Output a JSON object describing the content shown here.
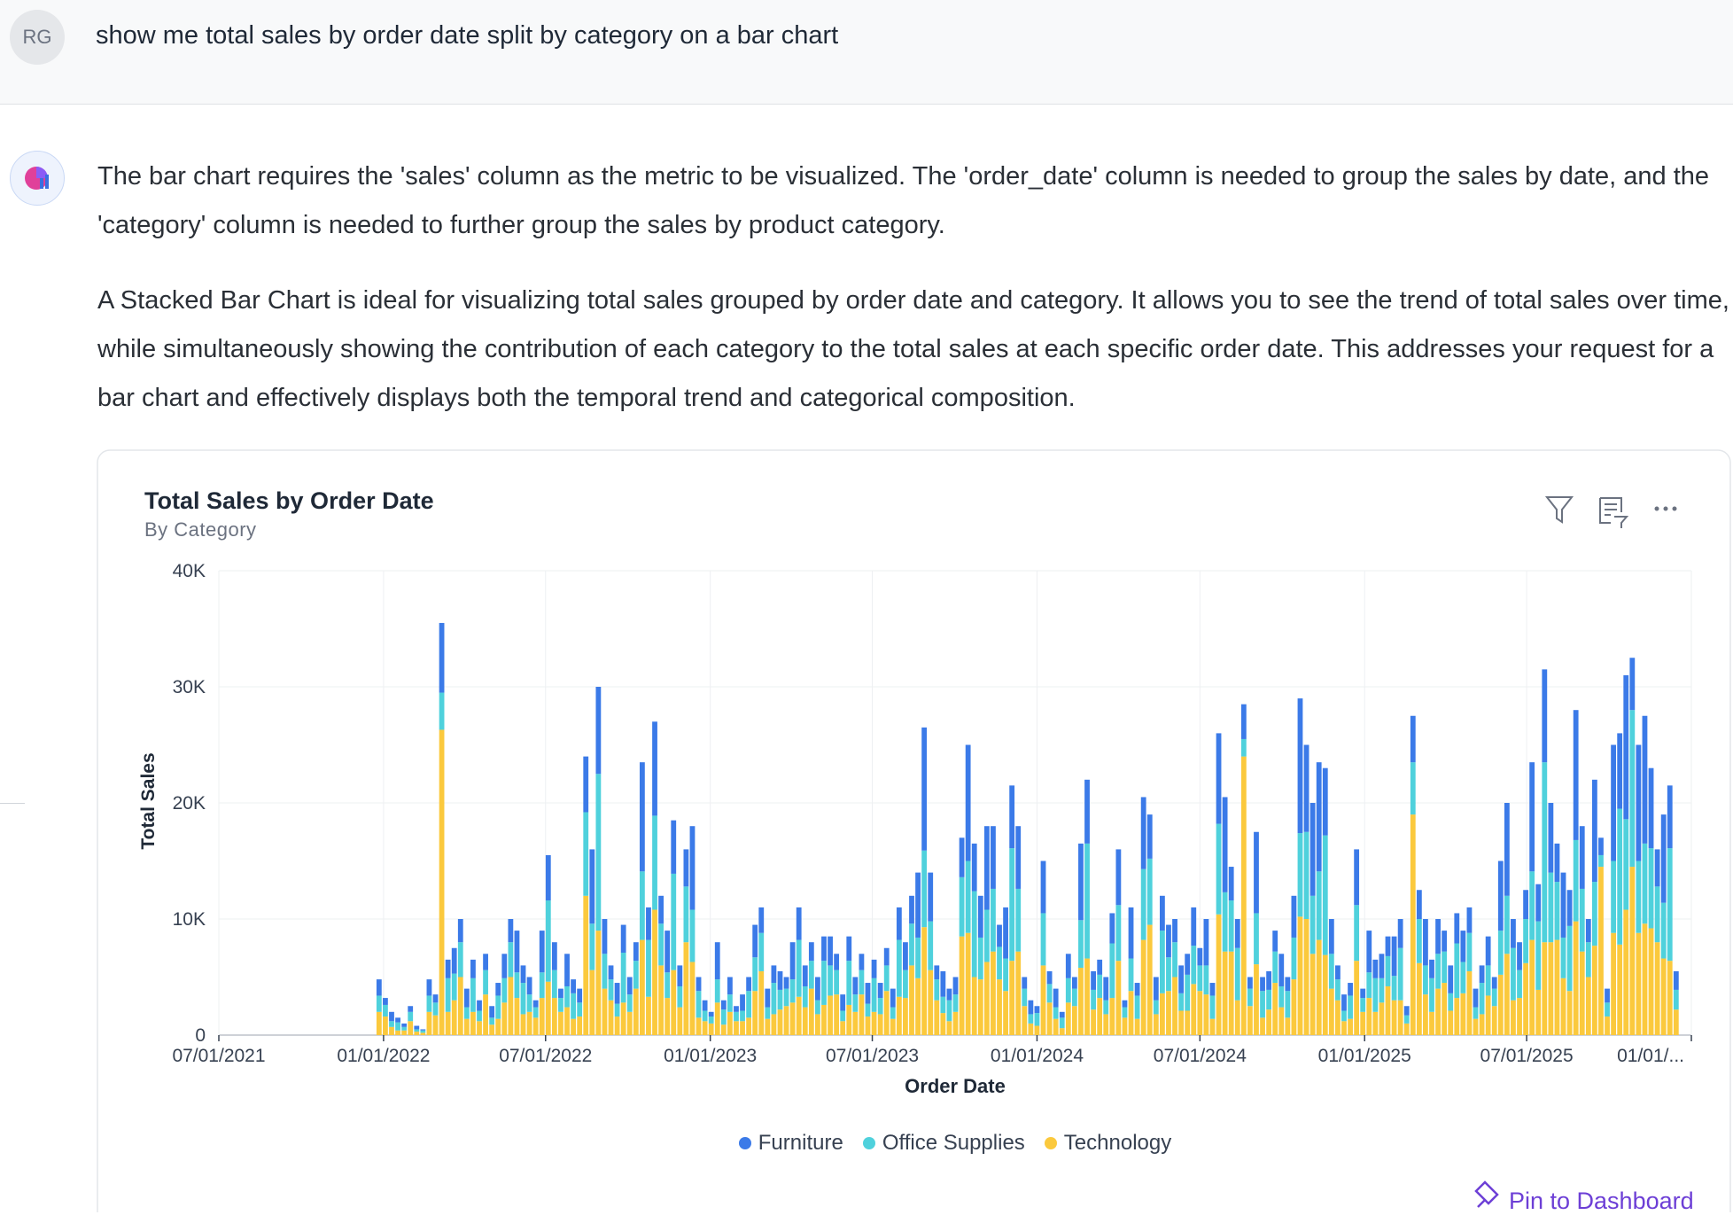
{
  "user_message": {
    "avatar": "RG",
    "text": "show me total sales by order date split by category on a bar chart"
  },
  "assistant_message": {
    "paragraphs": [
      "The bar chart requires the 'sales' column as the metric to be visualized. The 'order_date' column is needed to group the sales by date, and the 'category' column is needed to further group the sales by product category.",
      "A Stacked Bar Chart is ideal for visualizing total sales grouped by order date and category. It allows you to see the trend of total sales over time, while simultaneously showing the contribution of each category to the total sales at each specific order date. This addresses your request for a bar chart and effectively displays both the temporal trend and categorical composition."
    ]
  },
  "chart_data": {
    "type": "stacked_bar",
    "title": "Total Sales by Order Date",
    "subtitle": "By Category",
    "x_label": "Order Date",
    "y_label": "Total Sales",
    "grid": true,
    "legend": "bottom",
    "xlim": [
      "07/01/2021",
      "01/01/2026"
    ],
    "xticks": [
      "07/01/2021",
      "01/01/2022",
      "07/01/2022",
      "01/01/2023",
      "07/01/2023",
      "01/01/2024",
      "07/01/2024",
      "01/01/2025",
      "07/01/2025",
      {
        "value": "01/01/2026",
        "label": "01/01/..."
      }
    ],
    "ylim": [
      0,
      40000
    ],
    "yticks": [
      0,
      {
        "value": 10000,
        "label": "10K"
      },
      {
        "value": 20000,
        "label": "20K"
      },
      {
        "value": 30000,
        "label": "30K"
      },
      {
        "value": 40000,
        "label": "40K"
      }
    ],
    "x": [
      "12/27/2021",
      "01/03/2022",
      "01/10/2022",
      "01/17/2022",
      "01/24/2022",
      "01/31/2022",
      "02/07/2022",
      "02/14/2022",
      "02/21/2022",
      "02/28/2022",
      "03/07/2022",
      "03/14/2022",
      "03/21/2022",
      "03/28/2022",
      "04/04/2022",
      "04/11/2022",
      "04/18/2022",
      "04/25/2022",
      "05/02/2022",
      "05/09/2022",
      "05/16/2022",
      "05/23/2022",
      "05/30/2022",
      "06/06/2022",
      "06/13/2022",
      "06/20/2022",
      "06/27/2022",
      "07/04/2022",
      "07/11/2022",
      "07/18/2022",
      "07/25/2022",
      "08/01/2022",
      "08/08/2022",
      "08/15/2022",
      "08/22/2022",
      "08/29/2022",
      "09/05/2022",
      "09/12/2022",
      "09/19/2022",
      "09/26/2022",
      "10/03/2022",
      "10/10/2022",
      "10/17/2022",
      "10/24/2022",
      "10/31/2022",
      "11/07/2022",
      "11/14/2022",
      "11/21/2022",
      "11/28/2022",
      "12/05/2022",
      "12/12/2022",
      "12/19/2022",
      "12/26/2022",
      "01/02/2023",
      "01/09/2023",
      "01/16/2023",
      "01/23/2023",
      "01/30/2023",
      "02/06/2023",
      "02/13/2023",
      "02/20/2023",
      "02/27/2023",
      "03/06/2023",
      "03/13/2023",
      "03/20/2023",
      "03/27/2023",
      "04/03/2023",
      "04/10/2023",
      "04/17/2023",
      "04/24/2023",
      "05/01/2023",
      "05/08/2023",
      "05/15/2023",
      "05/22/2023",
      "05/29/2023",
      "06/05/2023",
      "06/12/2023",
      "06/19/2023",
      "06/26/2023",
      "07/03/2023",
      "07/10/2023",
      "07/17/2023",
      "07/24/2023",
      "07/31/2023",
      "08/07/2023",
      "08/14/2023",
      "08/21/2023",
      "08/28/2023",
      "09/04/2023",
      "09/11/2023",
      "09/18/2023",
      "09/25/2023",
      "10/02/2023",
      "10/09/2023",
      "10/16/2023",
      "10/23/2023",
      "10/30/2023",
      "11/06/2023",
      "11/13/2023",
      "11/20/2023",
      "11/27/2023",
      "12/04/2023",
      "12/11/2023",
      "12/18/2023",
      "12/25/2023",
      "01/01/2024",
      "01/08/2024",
      "01/15/2024",
      "01/22/2024",
      "01/29/2024",
      "02/05/2024",
      "02/12/2024",
      "02/19/2024",
      "02/26/2024",
      "03/04/2024",
      "03/11/2024",
      "03/18/2024",
      "03/25/2024",
      "04/01/2024",
      "04/08/2024",
      "04/15/2024",
      "04/22/2024",
      "04/29/2024",
      "05/06/2024",
      "05/13/2024",
      "05/20/2024",
      "05/27/2024",
      "06/03/2024",
      "06/10/2024",
      "06/17/2024",
      "06/24/2024",
      "07/01/2024",
      "07/08/2024",
      "07/15/2024",
      "07/22/2024",
      "07/29/2024",
      "08/05/2024",
      "08/12/2024",
      "08/19/2024",
      "08/26/2024",
      "09/02/2024",
      "09/09/2024",
      "09/16/2024",
      "09/23/2024",
      "09/30/2024",
      "10/07/2024",
      "10/14/2024",
      "10/21/2024",
      "10/28/2024",
      "11/04/2024",
      "11/11/2024",
      "11/18/2024",
      "11/25/2024",
      "12/02/2024",
      "12/09/2024",
      "12/16/2024",
      "12/23/2024",
      "12/30/2024",
      "01/06/2025",
      "01/13/2025",
      "01/20/2025",
      "01/27/2025",
      "02/03/2025",
      "02/10/2025",
      "02/17/2025",
      "02/24/2025",
      "03/03/2025",
      "03/10/2025",
      "03/17/2025",
      "03/24/2025",
      "03/31/2025",
      "04/07/2025",
      "04/14/2025",
      "04/21/2025",
      "04/28/2025",
      "05/05/2025",
      "05/12/2025",
      "05/19/2025",
      "05/26/2025",
      "06/02/2025",
      "06/09/2025",
      "06/16/2025",
      "06/23/2025",
      "06/30/2025",
      "07/07/2025",
      "07/14/2025",
      "07/21/2025",
      "07/28/2025",
      "08/04/2025",
      "08/11/2025",
      "08/18/2025",
      "08/25/2025",
      "09/01/2025",
      "09/08/2025",
      "09/15/2025",
      "09/22/2025",
      "09/29/2025",
      "10/06/2025",
      "10/13/2025",
      "10/20/2025",
      "10/27/2025",
      "11/03/2025",
      "11/10/2025",
      "11/17/2025",
      "11/24/2025",
      "12/01/2025",
      "12/08/2025",
      "12/15/2025"
    ],
    "series": [
      {
        "name": "Furniture",
        "color": "#3b7ae8",
        "values": [
          1400,
          600,
          800,
          400,
          300,
          500,
          300,
          100,
          1400,
          700,
          6000,
          1600,
          2200,
          2000,
          1600,
          1600,
          900,
          1400,
          1000,
          1100,
          2100,
          2000,
          3600,
          1500,
          1500,
          600,
          3600,
          3900,
          2400,
          800,
          2800,
          1200,
          1200,
          4800,
          6400,
          7500,
          3000,
          1200,
          1800,
          2400,
          1500,
          1600,
          9400,
          2800,
          8100,
          2400,
          3600,
          4600,
          1800,
          3200,
          7200,
          1200,
          900,
          400,
          3200,
          800,
          1500,
          500,
          1400,
          1200,
          2800,
          2200,
          1600,
          1500,
          1600,
          1000,
          3200,
          2800,
          1800,
          1600,
          2000,
          2100,
          2500,
          1400,
          1400,
          2100,
          1500,
          1400,
          1800,
          1600,
          1300,
          1500,
          1600,
          2800,
          2400,
          2400,
          5600,
          10600,
          4200,
          1200,
          2200,
          1000,
          1500,
          3400,
          10000,
          4100,
          3600,
          7200,
          5400,
          1900,
          4400,
          5400,
          5400,
          1000,
          1200,
          600,
          4500,
          1100,
          1600,
          500,
          2100,
          1000,
          6600,
          5500,
          1600,
          1300,
          2000,
          2600,
          4800,
          600,
          4400,
          1100,
          6200,
          3800,
          2000,
          3000,
          2800,
          2000,
          2400,
          1800,
          3300,
          1500,
          4000,
          1100,
          7800,
          8200,
          2900,
          2500,
          3000,
          1000,
          7000,
          1200,
          1600,
          1800,
          2800,
          1200,
          3600,
          11600,
          7500,
          8000,
          9400,
          5800,
          3000,
          1200,
          1400,
          1100,
          4800,
          800,
          3600,
          1600,
          2100,
          1700,
          3400,
          2500,
          800,
          4000,
          2500,
          4000,
          1600,
          3000,
          1800,
          2400,
          2600,
          2700,
          2200,
          1600,
          1500,
          2500,
          1000,
          6000,
          8000,
          2500,
          2400,
          2500,
          9400,
          3200,
          8000,
          6000,
          3300,
          5600,
          3100,
          11200,
          5400,
          2000,
          8800,
          1500,
          1200,
          10000,
          6500,
          12400,
          4500,
          10000,
          11000,
          6900,
          3200,
          7600,
          5400,
          1600
        ]
      },
      {
        "name": "Office Supplies",
        "color": "#4fd1dc",
        "values": [
          1400,
          1000,
          500,
          700,
          300,
          800,
          200,
          200,
          1400,
          1100,
          3200,
          2900,
          2300,
          3000,
          1000,
          2900,
          900,
          2100,
          600,
          2000,
          2100,
          3000,
          2200,
          2700,
          1500,
          900,
          2200,
          7000,
          2400,
          1200,
          1800,
          2200,
          1200,
          7200,
          4000,
          13500,
          3000,
          1800,
          1100,
          4300,
          1500,
          2400,
          5900,
          4900,
          8100,
          3600,
          2200,
          8300,
          1800,
          4800,
          4500,
          2300,
          900,
          600,
          2000,
          1300,
          1500,
          800,
          900,
          2300,
          2900,
          3300,
          1000,
          2700,
          1700,
          1500,
          2000,
          4900,
          1800,
          2400,
          1200,
          3800,
          2600,
          2100,
          900,
          3800,
          1500,
          2100,
          1100,
          2900,
          1400,
          2200,
          1000,
          4900,
          2400,
          3600,
          3500,
          6600,
          4200,
          1800,
          1400,
          1800,
          1500,
          5100,
          6200,
          7400,
          3600,
          4500,
          5400,
          2800,
          2800,
          9700,
          5400,
          1500,
          800,
          1100,
          4500,
          1600,
          1000,
          900,
          2100,
          1500,
          4100,
          9900,
          1700,
          2000,
          1200,
          4700,
          4800,
          900,
          2800,
          2000,
          6100,
          5700,
          1200,
          5400,
          2900,
          3000,
          1500,
          3100,
          3300,
          2200,
          2500,
          2000,
          7800,
          5100,
          4400,
          4500,
          1500,
          1500,
          4400,
          2300,
          1700,
          2700,
          1800,
          2300,
          3600,
          7200,
          7500,
          5000,
          5900,
          10300,
          3000,
          1800,
          900,
          2000,
          4800,
          1200,
          2200,
          2900,
          2100,
          2600,
          2100,
          4500,
          700,
          4500,
          3800,
          2500,
          2900,
          3000,
          2700,
          1500,
          4700,
          2700,
          3300,
          1000,
          2700,
          2600,
          1500,
          3800,
          5000,
          4500,
          2400,
          3800,
          5900,
          5900,
          15500,
          6000,
          5000,
          3500,
          5600,
          7000,
          5400,
          3000,
          5500,
          1000,
          1200,
          6200,
          11700,
          7800,
          13500,
          6200,
          6900,
          6900,
          4800,
          4800,
          9700,
          1700
        ]
      },
      {
        "name": "Technology",
        "color": "#fbc93d",
        "values": [
          2000,
          1600,
          700,
          400,
          400,
          1200,
          300,
          200,
          2000,
          1700,
          26300,
          2000,
          3000,
          5000,
          1400,
          2000,
          1200,
          3500,
          900,
          1400,
          2800,
          5000,
          3200,
          1800,
          2000,
          1500,
          3200,
          4600,
          3200,
          2000,
          2400,
          1400,
          1600,
          12000,
          5600,
          9000,
          4000,
          3000,
          1600,
          2800,
          2000,
          4000,
          8200,
          3300,
          10800,
          6000,
          3200,
          5600,
          2400,
          8000,
          6300,
          1500,
          1200,
          1000,
          2800,
          900,
          2000,
          1200,
          1200,
          1500,
          3800,
          5500,
          1400,
          1800,
          2200,
          2500,
          2800,
          3300,
          2400,
          4000,
          1800,
          2600,
          3400,
          3500,
          1200,
          2600,
          2000,
          3500,
          1600,
          2000,
          1800,
          3800,
          1400,
          3300,
          3200,
          6000,
          4900,
          9300,
          5600,
          3000,
          1900,
          1200,
          2000,
          8500,
          8800,
          5000,
          4800,
          6300,
          7200,
          4800,
          3800,
          6400,
          7200,
          2500,
          1000,
          800,
          6000,
          2800,
          1400,
          600,
          2800,
          2500,
          5800,
          6600,
          2200,
          3200,
          1800,
          3200,
          6400,
          1500,
          3800,
          1400,
          8200,
          9500,
          1800,
          3600,
          3800,
          5000,
          2100,
          2100,
          4400,
          3800,
          3500,
          1400,
          10400,
          7200,
          7200,
          3000,
          24000,
          2500,
          6100,
          1500,
          2200,
          4500,
          2400,
          1500,
          4800,
          10200,
          10000,
          7000,
          8200,
          6900,
          4000,
          3000,
          1200,
          1400,
          6400,
          2000,
          3200,
          2000,
          2800,
          4200,
          3000,
          3000,
          1000,
          19000,
          6200,
          3500,
          2000,
          4000,
          4500,
          2100,
          3200,
          3600,
          5500,
          1400,
          1800,
          3400,
          2500,
          5200,
          7000,
          3000,
          3200,
          6200,
          8200,
          3900,
          8000,
          8000,
          8200,
          4900,
          3800,
          9800,
          7200,
          5000,
          7700,
          14500,
          1600,
          8800,
          7800,
          10800,
          14500,
          8800,
          9600,
          9200,
          8000,
          6600,
          6400,
          2200
        ]
      }
    ]
  },
  "actions": {
    "pin": "Pin to Dashboard"
  }
}
